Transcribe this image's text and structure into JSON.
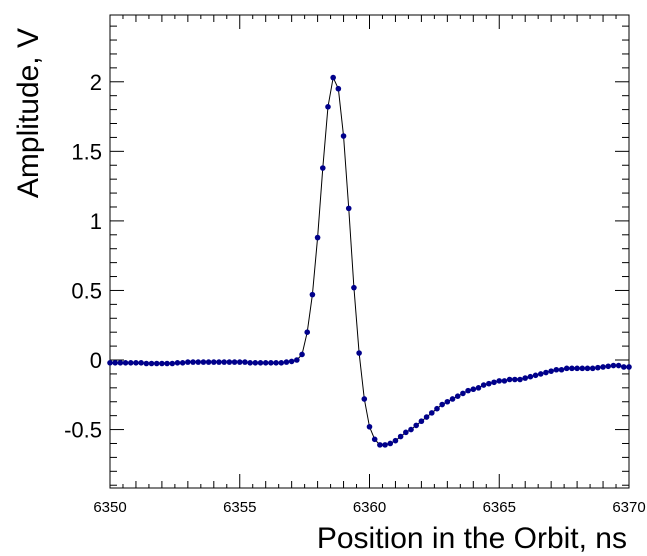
{
  "chart_data": {
    "type": "scatter",
    "title": "",
    "xlabel": "Position in the Orbit, ns",
    "ylabel": "Amplitude, V",
    "xlim": [
      6350,
      6370
    ],
    "ylim": [
      -0.92,
      2.48
    ],
    "x_ticks": [
      6350,
      6355,
      6360,
      6365,
      6370
    ],
    "x_tick_labels": [
      "6350",
      "6355",
      "6360",
      "6365",
      "6370"
    ],
    "y_ticks": [
      -0.5,
      0,
      0.5,
      1,
      1.5,
      2
    ],
    "y_tick_labels": [
      "-0.5",
      "0",
      "0.5",
      "1",
      "1.5",
      "2"
    ],
    "grid": false,
    "marker_color": "#00008b",
    "line_color": "#000000",
    "series": [
      {
        "x": [
          6350.0,
          6350.2,
          6350.4,
          6350.6,
          6350.8,
          6351.0,
          6351.2,
          6351.4,
          6351.6,
          6351.8,
          6352.0,
          6352.2,
          6352.4,
          6352.6,
          6352.8,
          6353.0,
          6353.2,
          6353.4,
          6353.6,
          6353.8,
          6354.0,
          6354.2,
          6354.4,
          6354.6,
          6354.8,
          6355.0,
          6355.2,
          6355.4,
          6355.6,
          6355.8,
          6356.0,
          6356.2,
          6356.4,
          6356.6,
          6356.8,
          6357.0,
          6357.2,
          6357.4,
          6357.6,
          6357.8,
          6358.0,
          6358.2,
          6358.4,
          6358.6,
          6358.8,
          6359.0,
          6359.2,
          6359.4,
          6359.6,
          6359.8,
          6360.0,
          6360.2,
          6360.4,
          6360.6,
          6360.8,
          6361.0,
          6361.2,
          6361.4,
          6361.6,
          6361.8,
          6362.0,
          6362.2,
          6362.4,
          6362.6,
          6362.8,
          6363.0,
          6363.2,
          6363.4,
          6363.6,
          6363.8,
          6364.0,
          6364.2,
          6364.4,
          6364.6,
          6364.8,
          6365.0,
          6365.2,
          6365.4,
          6365.6,
          6365.8,
          6366.0,
          6366.2,
          6366.4,
          6366.6,
          6366.8,
          6367.0,
          6367.2,
          6367.4,
          6367.6,
          6367.8,
          6368.0,
          6368.2,
          6368.4,
          6368.6,
          6368.8,
          6369.0,
          6369.2,
          6369.4,
          6369.6,
          6369.8,
          6370.0
        ],
        "y": [
          -0.02,
          -0.02,
          -0.02,
          -0.02,
          -0.02,
          -0.02,
          -0.02,
          -0.025,
          -0.025,
          -0.025,
          -0.025,
          -0.025,
          -0.025,
          -0.02,
          -0.02,
          -0.015,
          -0.015,
          -0.015,
          -0.015,
          -0.015,
          -0.015,
          -0.015,
          -0.015,
          -0.015,
          -0.015,
          -0.015,
          -0.015,
          -0.02,
          -0.02,
          -0.02,
          -0.02,
          -0.02,
          -0.02,
          -0.02,
          -0.015,
          -0.01,
          0.0,
          0.04,
          0.2,
          0.47,
          0.88,
          1.38,
          1.82,
          2.03,
          1.95,
          1.61,
          1.09,
          0.52,
          0.05,
          -0.28,
          -0.48,
          -0.57,
          -0.61,
          -0.61,
          -0.6,
          -0.58,
          -0.55,
          -0.52,
          -0.5,
          -0.47,
          -0.44,
          -0.41,
          -0.38,
          -0.35,
          -0.32,
          -0.3,
          -0.28,
          -0.26,
          -0.24,
          -0.22,
          -0.21,
          -0.2,
          -0.18,
          -0.17,
          -0.16,
          -0.15,
          -0.15,
          -0.14,
          -0.14,
          -0.14,
          -0.13,
          -0.12,
          -0.11,
          -0.1,
          -0.09,
          -0.08,
          -0.07,
          -0.07,
          -0.06,
          -0.06,
          -0.06,
          -0.06,
          -0.06,
          -0.06,
          -0.055,
          -0.05,
          -0.045,
          -0.04,
          -0.04,
          -0.05,
          -0.05
        ]
      }
    ]
  }
}
